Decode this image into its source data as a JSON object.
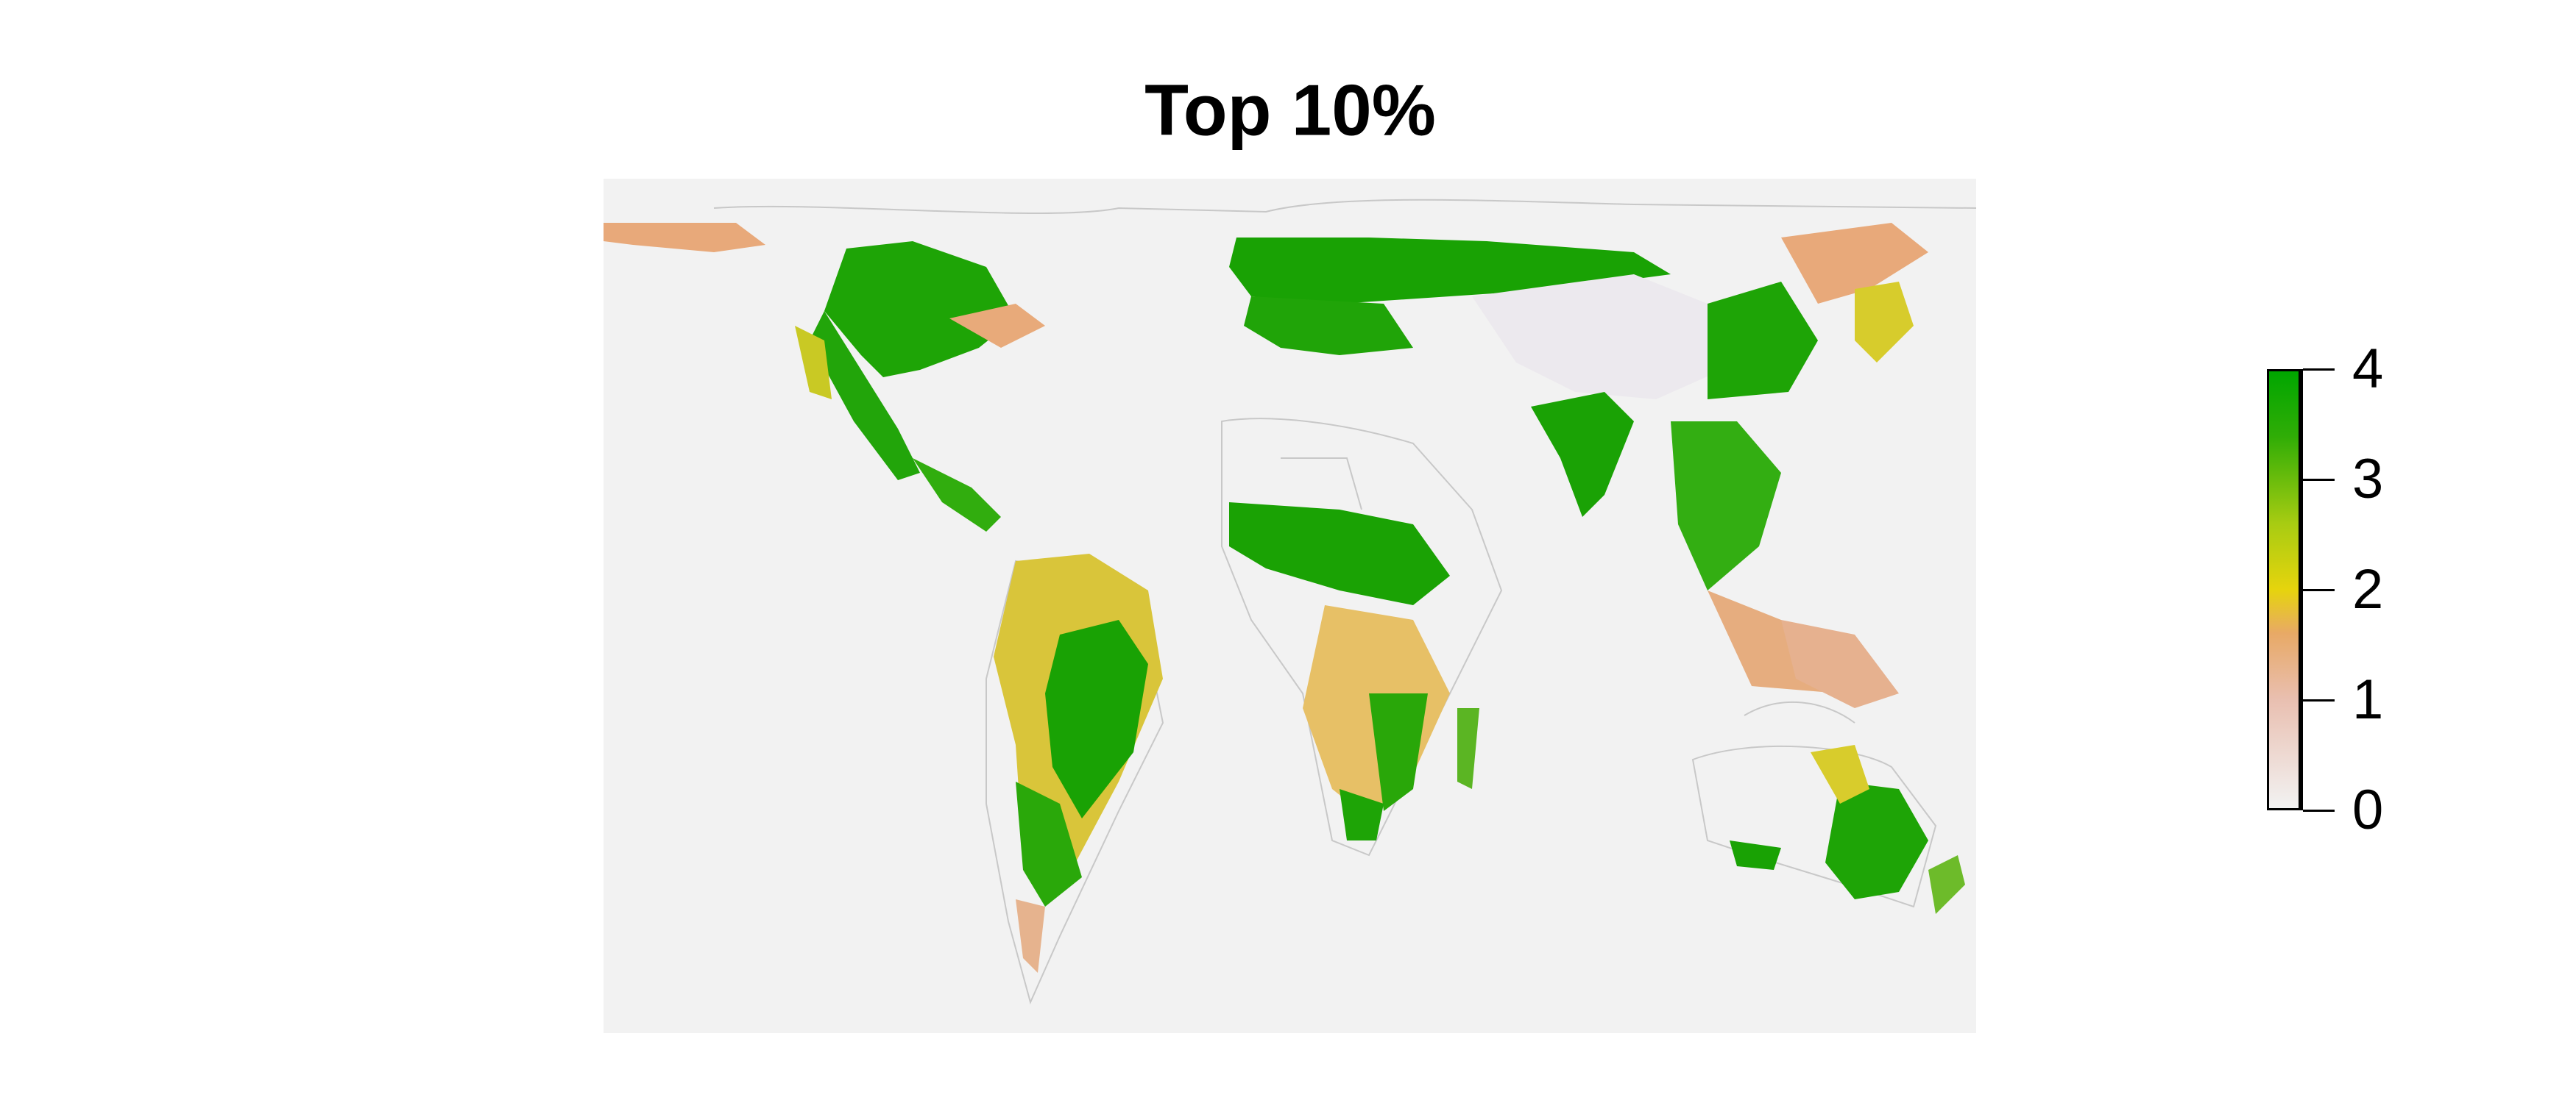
{
  "title": "Top 10%",
  "map": {
    "background_color": "#f2f2f2",
    "border_color": "#c8c8c8"
  },
  "legend": {
    "min": 0,
    "max": 4,
    "labels": [
      "0",
      "1",
      "2",
      "3",
      "4"
    ],
    "colors": [
      {
        "stop": 0.0,
        "color": "#f2f2f2"
      },
      {
        "stop": 0.25,
        "color": "#e9bfb0"
      },
      {
        "stop": 0.4,
        "color": "#e8a966"
      },
      {
        "stop": 0.5,
        "color": "#e6d40d"
      },
      {
        "stop": 0.65,
        "color": "#a8cc12"
      },
      {
        "stop": 0.85,
        "color": "#30ad06"
      },
      {
        "stop": 1.0,
        "color": "#00a600"
      }
    ]
  }
}
